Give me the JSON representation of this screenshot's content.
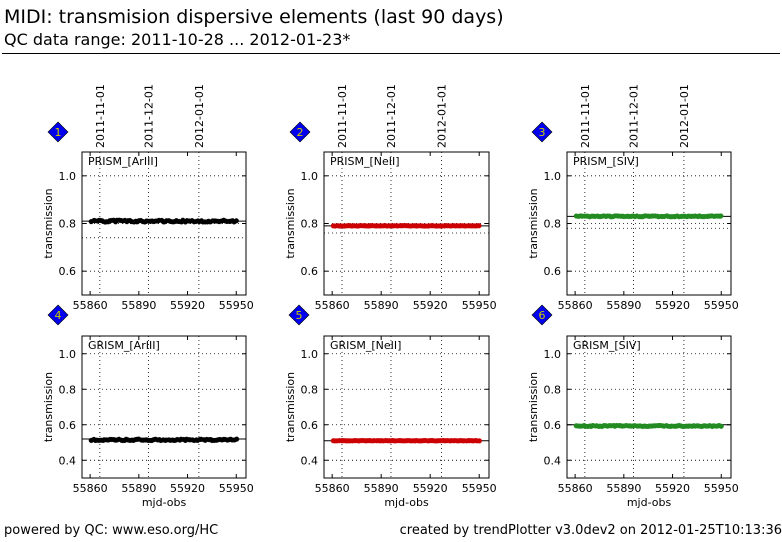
{
  "header": {
    "title": "MIDI: transmision dispersive elements (last 90 days)",
    "subtitle": "QC data range: 2011-10-28 ... 2012-01-23*"
  },
  "footer": {
    "left": "powered by QC: www.eso.org/HC",
    "right": "created by trendPlotter v3.0dev2 on 2012-01-25T10:13:36"
  },
  "colors": {
    "black_series": "#000000",
    "red_series": "#cc0000",
    "green_series": "#228b22",
    "badge_fill": "#0000ee",
    "badge_text": "#cccc00"
  },
  "chart_data": [
    {
      "type": "scatter",
      "index": "1",
      "title": "PRISM_[ArIII]",
      "color": "#000000",
      "xlabel": "",
      "ylabel": "transmission",
      "xlim": [
        55855,
        55956
      ],
      "ylim": [
        0.5,
        1.1
      ],
      "xticks": [
        55860,
        55890,
        55920,
        55950
      ],
      "yticks": [
        0.6,
        0.8,
        1.0
      ],
      "date_labels": [
        "2011-11-01",
        "2011-12-01",
        "2012-01-01"
      ],
      "date_positions": [
        55866,
        55896,
        55927
      ],
      "ref_lines": [
        0.81,
        0.74
      ],
      "x_range": [
        55861,
        55950
      ],
      "y_base": 0.81,
      "y_jitter": 0.004
    },
    {
      "type": "scatter",
      "index": "2",
      "title": "PRISM_[NeII]",
      "color": "#cc0000",
      "xlabel": "",
      "ylabel": "transmission",
      "xlim": [
        55855,
        55956
      ],
      "ylim": [
        0.5,
        1.1
      ],
      "xticks": [
        55860,
        55890,
        55920,
        55950
      ],
      "yticks": [
        0.6,
        0.8,
        1.0
      ],
      "date_labels": [
        "2011-11-01",
        "2011-12-01",
        "2012-01-01"
      ],
      "date_positions": [
        55866,
        55896,
        55927
      ],
      "ref_lines": [
        0.79,
        0.76
      ],
      "x_range": [
        55861,
        55950
      ],
      "y_base": 0.79,
      "y_jitter": 0.001
    },
    {
      "type": "scatter",
      "index": "3",
      "title": "PRISM_[SIV]",
      "color": "#228b22",
      "xlabel": "",
      "ylabel": "transmission",
      "xlim": [
        55855,
        55956
      ],
      "ylim": [
        0.5,
        1.1
      ],
      "xticks": [
        55860,
        55890,
        55920,
        55950
      ],
      "yticks": [
        0.6,
        0.8,
        1.0
      ],
      "date_labels": [
        "2011-11-01",
        "2011-12-01",
        "2012-01-01"
      ],
      "date_positions": [
        55866,
        55896,
        55927
      ],
      "ref_lines": [
        0.83,
        0.78
      ],
      "x_range": [
        55861,
        55950
      ],
      "y_base": 0.83,
      "y_jitter": 0.002
    },
    {
      "type": "scatter",
      "index": "4",
      "title": "GRISM_[ArIII]",
      "color": "#000000",
      "xlabel": "mjd-obs",
      "ylabel": "transmission",
      "xlim": [
        55855,
        55956
      ],
      "ylim": [
        0.3,
        1.1
      ],
      "xticks": [
        55860,
        55890,
        55920,
        55950
      ],
      "yticks": [
        0.4,
        0.6,
        0.8,
        1.0
      ],
      "date_labels": [],
      "date_positions": [
        55866,
        55896,
        55927
      ],
      "ref_lines": [
        0.52,
        0.4
      ],
      "x_range": [
        55861,
        55950
      ],
      "y_base": 0.515,
      "y_jitter": 0.004
    },
    {
      "type": "scatter",
      "index": "5",
      "title": "GRISM_[NeII]",
      "color": "#cc0000",
      "xlabel": "mjd-obs",
      "ylabel": "transmission",
      "xlim": [
        55855,
        55956
      ],
      "ylim": [
        0.3,
        1.1
      ],
      "xticks": [
        55860,
        55890,
        55920,
        55950
      ],
      "yticks": [
        0.4,
        0.6,
        0.8,
        1.0
      ],
      "date_labels": [],
      "date_positions": [
        55866,
        55896,
        55927
      ],
      "ref_lines": [
        0.51,
        0.4
      ],
      "x_range": [
        55861,
        55950
      ],
      "y_base": 0.51,
      "y_jitter": 0.001
    },
    {
      "type": "scatter",
      "index": "6",
      "title": "GRISM_[SIV]",
      "color": "#228b22",
      "xlabel": "mjd-obs",
      "ylabel": "transmission",
      "xlim": [
        55855,
        55956
      ],
      "ylim": [
        0.3,
        1.1
      ],
      "xticks": [
        55860,
        55890,
        55920,
        55950
      ],
      "yticks": [
        0.4,
        0.6,
        0.8,
        1.0
      ],
      "date_labels": [],
      "date_positions": [
        55866,
        55896,
        55927
      ],
      "ref_lines": [
        0.6,
        0.4
      ],
      "x_range": [
        55861,
        55950
      ],
      "y_base": 0.593,
      "y_jitter": 0.003
    }
  ]
}
